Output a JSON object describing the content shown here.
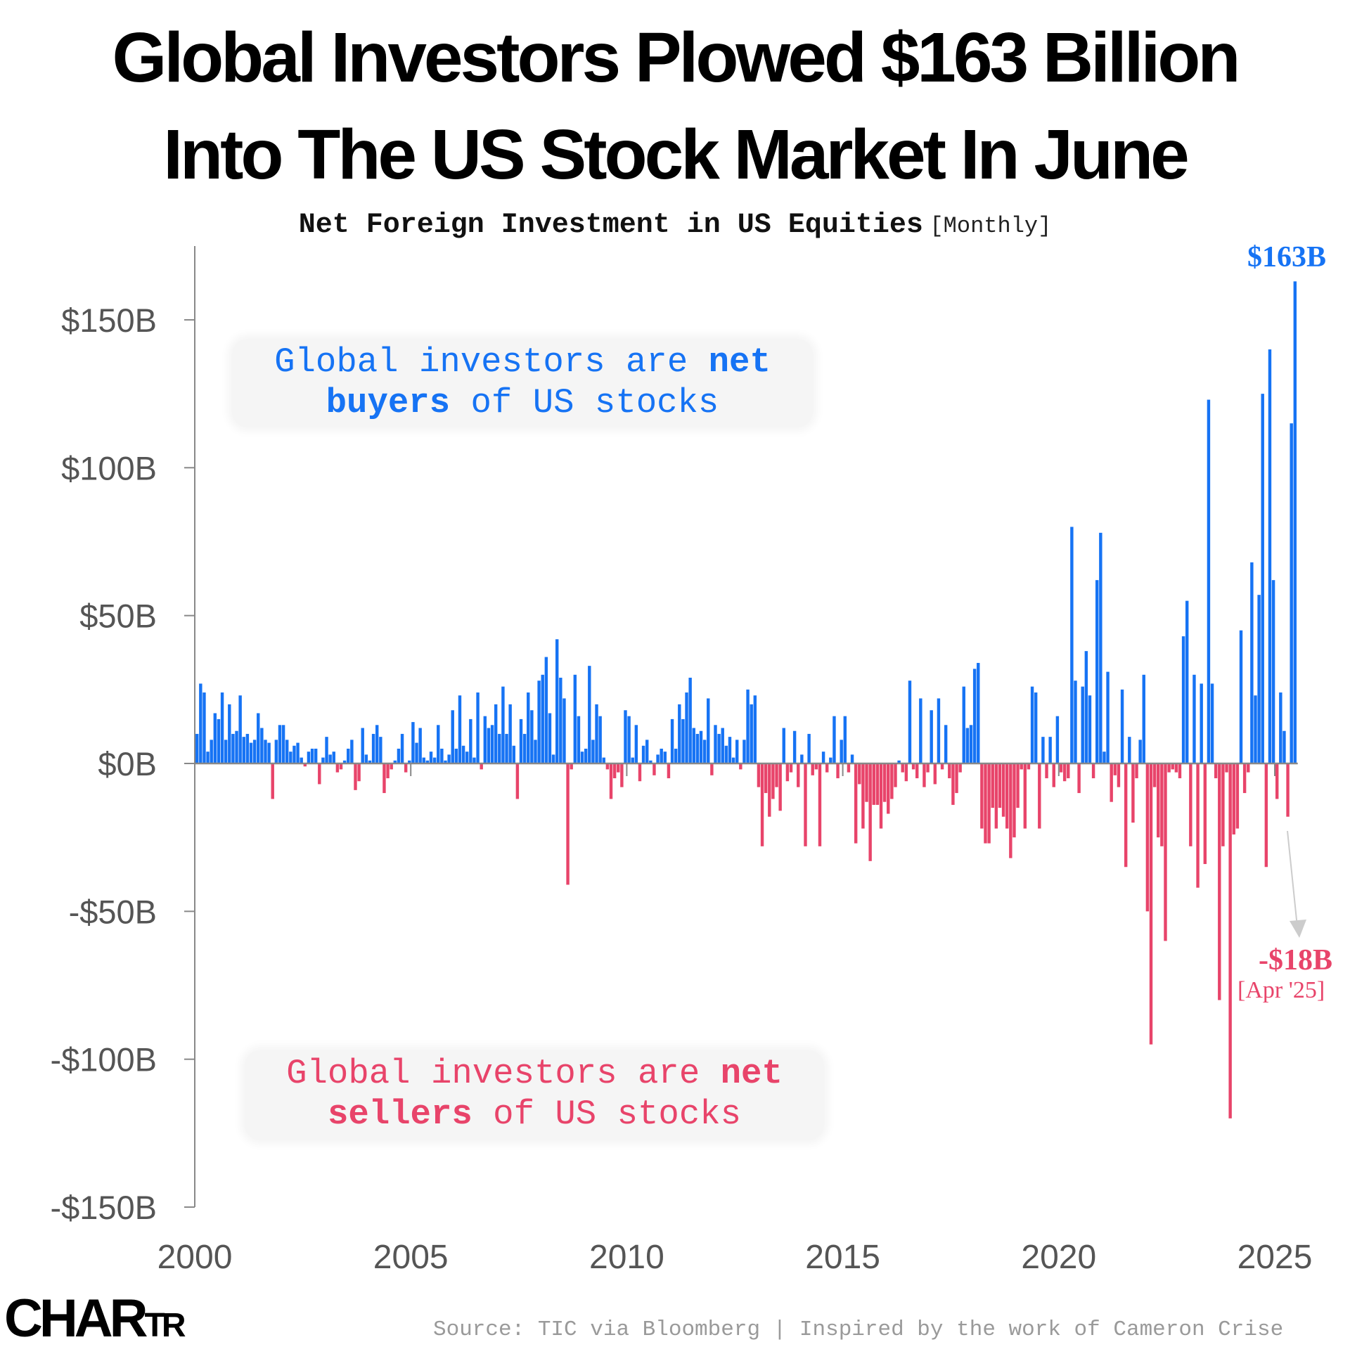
{
  "title": {
    "line1": "Global Investors Plowed $163 Billion",
    "line2": "Into The US Stock Market In June"
  },
  "subtitle": {
    "main": "Net Foreign Investment in US Equities",
    "frequency": "[Monthly]"
  },
  "annotations": {
    "buyers": {
      "pre": "Global investors are ",
      "bold1": "net",
      "bold2": "buyers",
      "post": " of US stocks"
    },
    "sellers": {
      "pre": "Global investors are ",
      "bold1": "net",
      "bold2": "sellers",
      "post": " of US stocks"
    },
    "peak_label": "$163B",
    "low_label": "-$18B",
    "low_date": "[Apr '25]"
  },
  "footer": {
    "source": "Source: TIC via Bloomberg | Inspired by the work of Cameron Crise",
    "logo": {
      "big1": "CHA",
      "big2": "R",
      "small": "TR"
    }
  },
  "colors": {
    "positive": "#1673f4",
    "negative": "#e8446a",
    "axis": "#888888",
    "text": "#555555"
  },
  "chart_data": {
    "type": "bar",
    "title": "Net Foreign Investment in US Equities",
    "xlabel": "",
    "ylabel": "",
    "x_start": "2000-01",
    "frequency": "monthly",
    "ylim": [
      -150,
      163
    ],
    "yticks": [
      150,
      100,
      50,
      0,
      -50,
      -100,
      -150
    ],
    "ytick_labels": [
      "$150B",
      "$100B",
      "$50B",
      "$0B",
      "-$50B",
      "-$100B",
      "-$150B"
    ],
    "xticks": [
      2000,
      2005,
      2010,
      2015,
      2020,
      2025
    ],
    "xtick_labels": [
      "2000",
      "2005",
      "2010",
      "2015",
      "2020",
      "2025"
    ],
    "grid": false,
    "unit": "billion USD",
    "values": [
      10,
      27,
      24,
      4,
      8,
      17,
      15,
      24,
      8,
      20,
      10,
      11,
      23,
      9,
      10,
      7,
      8,
      17,
      12,
      8,
      7,
      -12,
      8,
      13,
      13,
      8,
      4,
      6,
      7,
      2,
      -1,
      4,
      5,
      5,
      -7,
      2,
      9,
      3,
      4,
      -3,
      -2,
      1,
      5,
      8,
      -9,
      -6,
      12,
      3,
      1,
      10,
      13,
      9,
      -10,
      -5,
      -2,
      1,
      5,
      10,
      -3,
      1,
      14,
      7,
      12,
      2,
      1,
      4,
      2,
      13,
      5,
      1,
      3,
      18,
      5,
      23,
      6,
      4,
      15,
      2,
      24,
      -2,
      16,
      12,
      13,
      20,
      10,
      26,
      10,
      20,
      6,
      -12,
      15,
      10,
      24,
      18,
      8,
      28,
      30,
      36,
      17,
      3,
      42,
      29,
      22,
      -41,
      -2,
      30,
      16,
      4,
      5,
      33,
      8,
      20,
      16,
      2,
      -2,
      -12,
      -5,
      -3,
      -8,
      18,
      16,
      2,
      13,
      -6,
      6,
      8,
      1,
      -4,
      3,
      5,
      4,
      -5,
      15,
      5,
      20,
      15,
      24,
      29,
      12,
      10,
      11,
      8,
      22,
      -4,
      13,
      10,
      12,
      6,
      9,
      2,
      8,
      -2,
      8,
      25,
      20,
      23,
      -8,
      -28,
      -10,
      -18,
      -12,
      -8,
      -16,
      12,
      -6,
      -3,
      11,
      -8,
      3,
      -28,
      10,
      -4,
      -2,
      -28,
      4,
      -3,
      2,
      16,
      -5,
      8,
      16,
      -3,
      3,
      -27,
      -7,
      -22,
      -13,
      -33,
      -14,
      -14,
      -22,
      -13,
      -17,
      -12,
      -8,
      1,
      -3,
      -6,
      28,
      -2,
      -5,
      22,
      -8,
      -3,
      18,
      -7,
      22,
      -2,
      13,
      -5,
      -14,
      -10,
      -3,
      26,
      12,
      13,
      32,
      34,
      -22,
      -27,
      -27,
      -15,
      -22,
      -15,
      -18,
      -22,
      -32,
      -25,
      -15,
      -2,
      -22,
      -2,
      26,
      24,
      -22,
      9,
      -5,
      9,
      -8,
      16,
      -3,
      -6,
      -5,
      80,
      28,
      -10,
      26,
      38,
      23,
      -5,
      62,
      78,
      4,
      31,
      -13,
      -4,
      -8,
      25,
      -35,
      9,
      -20,
      -5,
      8,
      30,
      -50,
      -95,
      -8,
      -25,
      -28,
      -60,
      -3,
      -2,
      -3,
      -5,
      43,
      55,
      -28,
      30,
      -42,
      27,
      -34,
      123,
      27,
      -5,
      -80,
      -28,
      -3,
      -120,
      -24,
      -22,
      45,
      -10,
      -3,
      68,
      23,
      57,
      125,
      -35,
      140,
      62,
      -12,
      24,
      11,
      -18,
      115,
      163
    ]
  }
}
